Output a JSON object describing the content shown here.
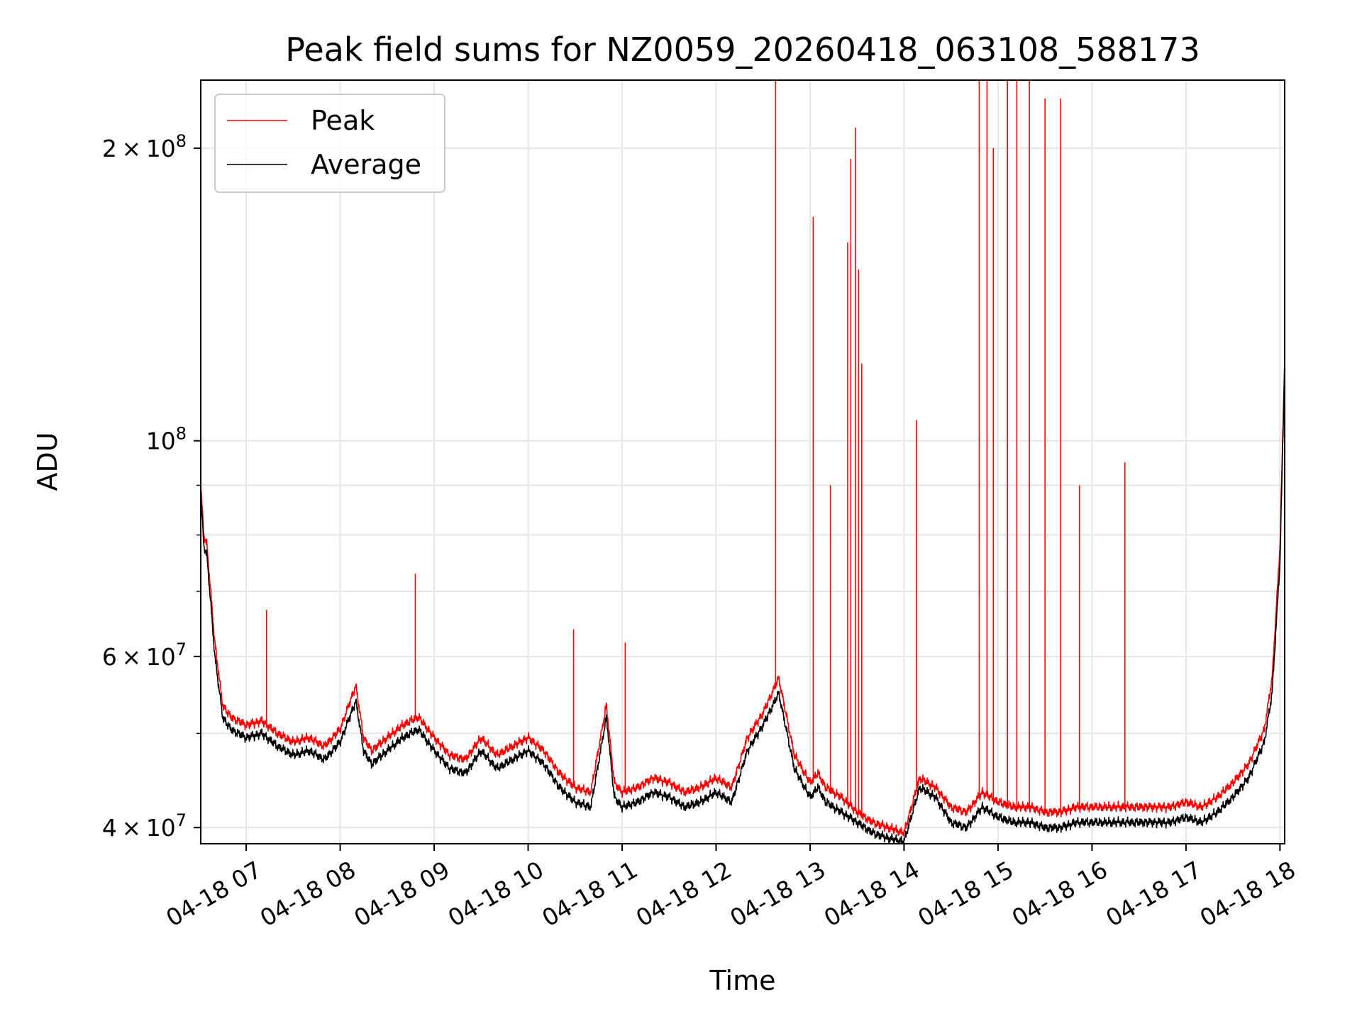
{
  "chart_data": {
    "type": "line",
    "title": "Peak field sums for NZ0059_20260418_063108_588173",
    "xlabel": "Time",
    "ylabel": "ADU",
    "yscale": "log",
    "xlim": [
      "04-18 06:31",
      "04-18 18:03"
    ],
    "ylim": [
      38500000,
      235000000
    ],
    "grid": true,
    "legend": {
      "location": "upper-left",
      "entries": [
        "Peak",
        "Average"
      ]
    },
    "x_ticks": [
      "04-18 07",
      "04-18 08",
      "04-18 09",
      "04-18 10",
      "04-18 11",
      "04-18 12",
      "04-18 13",
      "04-18 14",
      "04-18 15",
      "04-18 16",
      "04-18 17",
      "04-18 18"
    ],
    "y_ticks": [
      {
        "value": 40000000,
        "mantissa": "4",
        "exponent": "7"
      },
      {
        "value": 60000000,
        "mantissa": "6",
        "exponent": "7"
      },
      {
        "value": 100000000,
        "mantissa": "",
        "exponent": "8"
      },
      {
        "value": 200000000,
        "mantissa": "2",
        "exponent": "8"
      }
    ],
    "colors": {
      "Peak": "#ff0000",
      "Average": "#000000",
      "grid": "#e6e6e6"
    },
    "series": [
      {
        "name": "Average",
        "x": [
          "04-18 06:31",
          "04-18 06:33",
          "04-18 06:35",
          "04-18 06:40",
          "04-18 06:45",
          "04-18 06:50",
          "04-18 07:00",
          "04-18 07:10",
          "04-18 07:20",
          "04-18 07:30",
          "04-18 07:40",
          "04-18 07:50",
          "04-18 08:00",
          "04-18 08:10",
          "04-18 08:15",
          "04-18 08:20",
          "04-18 08:30",
          "04-18 08:40",
          "04-18 08:50",
          "04-18 09:00",
          "04-18 09:10",
          "04-18 09:20",
          "04-18 09:30",
          "04-18 09:40",
          "04-18 09:50",
          "04-18 10:00",
          "04-18 10:10",
          "04-18 10:20",
          "04-18 10:30",
          "04-18 10:40",
          "04-18 10:50",
          "04-18 10:55",
          "04-18 11:00",
          "04-18 11:10",
          "04-18 11:20",
          "04-18 11:30",
          "04-18 11:40",
          "04-18 11:50",
          "04-18 12:00",
          "04-18 12:10",
          "04-18 12:20",
          "04-18 12:30",
          "04-18 12:40",
          "04-18 12:50",
          "04-18 13:00",
          "04-18 13:05",
          "04-18 13:10",
          "04-18 13:20",
          "04-18 13:30",
          "04-18 13:40",
          "04-18 13:50",
          "04-18 14:00",
          "04-18 14:10",
          "04-18 14:20",
          "04-18 14:30",
          "04-18 14:40",
          "04-18 14:50",
          "04-18 15:00",
          "04-18 15:10",
          "04-18 15:20",
          "04-18 15:30",
          "04-18 15:40",
          "04-18 15:50",
          "04-18 16:00",
          "04-18 16:10",
          "04-18 16:20",
          "04-18 16:30",
          "04-18 16:40",
          "04-18 16:50",
          "04-18 17:00",
          "04-18 17:10",
          "04-18 17:20",
          "04-18 17:30",
          "04-18 17:40",
          "04-18 17:50",
          "04-18 17:55",
          "04-18 18:00",
          "04-18 18:03"
        ],
        "values": [
          88000000,
          78000000,
          76000000,
          60000000,
          52000000,
          50500000,
          49500000,
          50000000,
          48500000,
          47500000,
          48000000,
          47000000,
          49000000,
          54000000,
          48000000,
          46500000,
          48000000,
          49500000,
          50500000,
          48000000,
          46000000,
          45500000,
          48000000,
          46000000,
          47000000,
          48000000,
          46500000,
          44000000,
          42500000,
          42000000,
          52000000,
          43000000,
          42000000,
          42500000,
          43500000,
          43000000,
          42000000,
          42500000,
          43500000,
          42500000,
          48000000,
          51000000,
          55000000,
          46000000,
          43000000,
          44000000,
          42500000,
          41500000,
          40500000,
          39500000,
          39000000,
          38700000,
          44000000,
          43000000,
          40500000,
          40000000,
          42000000,
          41000000,
          40500000,
          40500000,
          40000000,
          40000000,
          40500000,
          40500000,
          40500000,
          40500000,
          40500000,
          40500000,
          40500000,
          41000000,
          40500000,
          41500000,
          43000000,
          45000000,
          49000000,
          55000000,
          75000000,
          120000000
        ]
      },
      {
        "name": "Peak",
        "x": [
          "04-18 06:31",
          "04-18 06:33",
          "04-18 06:35",
          "04-18 06:40",
          "04-18 06:45",
          "04-18 06:50",
          "04-18 07:00",
          "04-18 07:10",
          "04-18 07:20",
          "04-18 07:30",
          "04-18 07:40",
          "04-18 07:50",
          "04-18 08:00",
          "04-18 08:10",
          "04-18 08:15",
          "04-18 08:20",
          "04-18 08:30",
          "04-18 08:40",
          "04-18 08:50",
          "04-18 09:00",
          "04-18 09:10",
          "04-18 09:20",
          "04-18 09:30",
          "04-18 09:40",
          "04-18 09:50",
          "04-18 10:00",
          "04-18 10:10",
          "04-18 10:20",
          "04-18 10:30",
          "04-18 10:40",
          "04-18 10:50",
          "04-18 10:55",
          "04-18 11:00",
          "04-18 11:10",
          "04-18 11:20",
          "04-18 11:30",
          "04-18 11:40",
          "04-18 11:50",
          "04-18 12:00",
          "04-18 12:10",
          "04-18 12:20",
          "04-18 12:30",
          "04-18 12:40",
          "04-18 12:50",
          "04-18 13:00",
          "04-18 13:05",
          "04-18 13:10",
          "04-18 13:20",
          "04-18 13:30",
          "04-18 13:40",
          "04-18 13:50",
          "04-18 14:00",
          "04-18 14:10",
          "04-18 14:20",
          "04-18 14:30",
          "04-18 14:40",
          "04-18 14:50",
          "04-18 15:00",
          "04-18 15:10",
          "04-18 15:20",
          "04-18 15:30",
          "04-18 15:40",
          "04-18 15:50",
          "04-18 16:00",
          "04-18 16:10",
          "04-18 16:20",
          "04-18 16:30",
          "04-18 16:40",
          "04-18 16:50",
          "04-18 17:00",
          "04-18 17:10",
          "04-18 17:20",
          "04-18 17:30",
          "04-18 17:40",
          "04-18 17:50",
          "04-18 17:55",
          "04-18 18:00",
          "04-18 18:03"
        ],
        "values": [
          90000000,
          80000000,
          78000000,
          62000000,
          53500000,
          52000000,
          51000000,
          51500000,
          50000000,
          49000000,
          49500000,
          48500000,
          50500000,
          56000000,
          49500000,
          48000000,
          49500000,
          51000000,
          52000000,
          49500000,
          47500000,
          47000000,
          49500000,
          47500000,
          48500000,
          49500000,
          48000000,
          45500000,
          44000000,
          43500000,
          53500000,
          44500000,
          43500000,
          44000000,
          45000000,
          44500000,
          43500000,
          44000000,
          45000000,
          44000000,
          49500000,
          52500000,
          57000000,
          47500000,
          44500000,
          45500000,
          44000000,
          43000000,
          41500000,
          40500000,
          40000000,
          39500000,
          45000000,
          44000000,
          42000000,
          41500000,
          43500000,
          42500000,
          42000000,
          42000000,
          41500000,
          41500000,
          42000000,
          42000000,
          42000000,
          42000000,
          42000000,
          42000000,
          42000000,
          42500000,
          42000000,
          43000000,
          44500000,
          46500000,
          50500000,
          57000000,
          78000000,
          122000000
        ],
        "spikes": [
          {
            "x": "04-18 07:13",
            "value": 67000000
          },
          {
            "x": "04-18 08:48",
            "value": 73000000
          },
          {
            "x": "04-18 10:29",
            "value": 64000000
          },
          {
            "x": "04-18 11:02",
            "value": 62000000
          },
          {
            "x": "04-18 12:38",
            "value": 235000000
          },
          {
            "x": "04-18 13:02",
            "value": 170000000
          },
          {
            "x": "04-18 13:13",
            "value": 90000000
          },
          {
            "x": "04-18 13:24",
            "value": 160000000
          },
          {
            "x": "04-18 13:26",
            "value": 195000000
          },
          {
            "x": "04-18 13:29",
            "value": 210000000
          },
          {
            "x": "04-18 13:31",
            "value": 150000000
          },
          {
            "x": "04-18 13:33",
            "value": 120000000
          },
          {
            "x": "04-18 14:08",
            "value": 105000000
          },
          {
            "x": "04-18 14:48",
            "value": 235000000
          },
          {
            "x": "04-18 14:53",
            "value": 235000000
          },
          {
            "x": "04-18 14:57",
            "value": 200000000
          },
          {
            "x": "04-18 15:06",
            "value": 235000000
          },
          {
            "x": "04-18 15:12",
            "value": 235000000
          },
          {
            "x": "04-18 15:20",
            "value": 235000000
          },
          {
            "x": "04-18 15:30",
            "value": 225000000
          },
          {
            "x": "04-18 15:40",
            "value": 225000000
          },
          {
            "x": "04-18 15:52",
            "value": 90000000
          },
          {
            "x": "04-18 16:21",
            "value": 95000000
          }
        ]
      }
    ]
  }
}
